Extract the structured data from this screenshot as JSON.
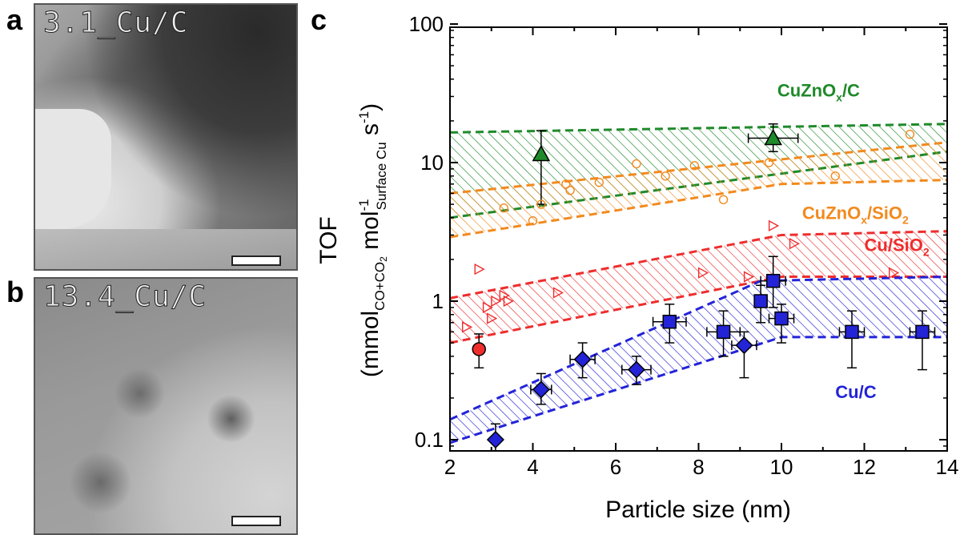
{
  "panels": {
    "a": {
      "letter": "a",
      "label": "3.1_Cu/C"
    },
    "b": {
      "letter": "b",
      "label": "13.4_Cu/C"
    },
    "c": {
      "letter": "c"
    }
  },
  "colors": {
    "green": "#1f8a2a",
    "orange": "#f28a1e",
    "red": "#ee2d2d",
    "blue": "#2323d8"
  },
  "chart_data": {
    "type": "scatter",
    "xlabel": "Particle size (nm)",
    "ylabel": "TOF",
    "ylabel_unit": "(mmol_{CO+CO2} mol^{-1}_{Surface Cu} s^{-1})",
    "xlim": [
      2,
      14
    ],
    "ylim": [
      0.05,
      100
    ],
    "yscale": "log",
    "xticks": [
      "2",
      "4",
      "6",
      "8",
      "10",
      "12",
      "14"
    ],
    "yticks": [
      "0.1",
      "1",
      "10",
      "100"
    ],
    "bands": [
      {
        "name": "CuZnOx/C",
        "color": "#1f8a2a",
        "upper": [
          [
            2,
            16.5
          ],
          [
            14,
            19
          ]
        ],
        "lower": [
          [
            2,
            4
          ],
          [
            14,
            12
          ]
        ]
      },
      {
        "name": "CuZnOx/SiO2",
        "color": "#f28a1e",
        "upper": [
          [
            2,
            6
          ],
          [
            14,
            14
          ]
        ],
        "lower": [
          [
            2,
            2.9
          ],
          [
            10,
            7
          ],
          [
            14,
            7.5
          ]
        ]
      },
      {
        "name": "Cu/SiO2",
        "color": "#ee2d2d",
        "upper": [
          [
            2,
            1.05
          ],
          [
            10,
            3
          ],
          [
            14,
            3.2
          ]
        ],
        "lower": [
          [
            2,
            0.5
          ],
          [
            10,
            1.5
          ],
          [
            14,
            1.5
          ]
        ]
      },
      {
        "name": "Cu/C",
        "color": "#2323d8",
        "upper": [
          [
            2,
            0.14
          ],
          [
            9.5,
            1.4
          ],
          [
            14,
            1.5
          ]
        ],
        "lower": [
          [
            2,
            0.095
          ],
          [
            10,
            0.55
          ],
          [
            14,
            0.55
          ]
        ]
      }
    ],
    "band_labels": [
      {
        "text": "CuZnO",
        "sub": "x",
        "after": "/C",
        "color": "#1f8a2a",
        "x": 9.9,
        "y": 30
      },
      {
        "text": "CuZnO",
        "sub": "x",
        "after": "/SiO",
        "sub2": "2",
        "color": "#f28a1e",
        "x": 10.5,
        "y": 3.9
      },
      {
        "text": "Cu/SiO",
        "sub": "",
        "after": "",
        "sub2": "2",
        "color": "#ee2d2d",
        "x": 12.0,
        "y": 2.3
      },
      {
        "text": "Cu/C",
        "sub": "",
        "after": "",
        "color": "#2323d8",
        "x": 11.3,
        "y": 0.2
      }
    ],
    "series": [
      {
        "name": "CuZnOx/C",
        "marker": "triangle",
        "color": "#1f8a2a",
        "filled": true,
        "points": [
          {
            "x": 4.2,
            "y": 11.5,
            "yerr": [
              5,
              17
            ],
            "xerr": 0
          },
          {
            "x": 9.8,
            "y": 15,
            "yerr": [
              12,
              19
            ],
            "xerr": 0.6
          }
        ]
      },
      {
        "name": "CuZnOx/SiO2",
        "marker": "circle",
        "color": "#f28a1e",
        "filled": false,
        "points": [
          {
            "x": 3.3,
            "y": 4.7
          },
          {
            "x": 4.0,
            "y": 3.8
          },
          {
            "x": 4.2,
            "y": 5.0
          },
          {
            "x": 4.8,
            "y": 7.0
          },
          {
            "x": 4.9,
            "y": 6.3
          },
          {
            "x": 5.6,
            "y": 7.2
          },
          {
            "x": 6.5,
            "y": 9.8
          },
          {
            "x": 7.2,
            "y": 8.0
          },
          {
            "x": 7.9,
            "y": 9.5
          },
          {
            "x": 8.6,
            "y": 5.4
          },
          {
            "x": 9.7,
            "y": 10.0
          },
          {
            "x": 11.3,
            "y": 8.0
          },
          {
            "x": 13.1,
            "y": 16.0
          }
        ]
      },
      {
        "name": "Cu/SiO2",
        "marker": "tri-right",
        "color": "#ee2d2d",
        "filled": false,
        "points": [
          {
            "x": 2.4,
            "y": 0.65
          },
          {
            "x": 2.7,
            "y": 1.7
          },
          {
            "x": 2.9,
            "y": 0.9
          },
          {
            "x": 3.0,
            "y": 0.75
          },
          {
            "x": 3.1,
            "y": 1.0
          },
          {
            "x": 3.3,
            "y": 1.1
          },
          {
            "x": 3.4,
            "y": 1.0
          },
          {
            "x": 4.6,
            "y": 1.15
          },
          {
            "x": 8.1,
            "y": 1.6
          },
          {
            "x": 9.2,
            "y": 1.5
          },
          {
            "x": 9.8,
            "y": 3.5
          },
          {
            "x": 10.3,
            "y": 2.6
          },
          {
            "x": 12.7,
            "y": 1.6
          }
        ]
      },
      {
        "name": "Cu/C (red)",
        "marker": "circle",
        "color": "#ee2d2d",
        "filled": true,
        "points": [
          {
            "x": 2.7,
            "y": 0.45,
            "yerr": [
              0.33,
              0.58
            ],
            "xerr": 0
          }
        ]
      },
      {
        "name": "Cu/C diamonds",
        "marker": "diamond",
        "color": "#2323d8",
        "filled": true,
        "points": [
          {
            "x": 3.1,
            "y": 0.1,
            "yerr": [
              0.075,
              0.13
            ],
            "xerr": 0
          },
          {
            "x": 4.2,
            "y": 0.23,
            "yerr": [
              0.18,
              0.3
            ],
            "xerr": 0.25
          },
          {
            "x": 5.2,
            "y": 0.38,
            "yerr": [
              0.28,
              0.5
            ],
            "xerr": 0.3
          },
          {
            "x": 6.5,
            "y": 0.32,
            "yerr": [
              0.25,
              0.4
            ],
            "xerr": 0.35
          },
          {
            "x": 9.1,
            "y": 0.48,
            "yerr": [
              0.28,
              0.6
            ],
            "xerr": 0.3
          }
        ]
      },
      {
        "name": "Cu/C squares",
        "marker": "square",
        "color": "#2323d8",
        "filled": true,
        "points": [
          {
            "x": 7.3,
            "y": 0.71,
            "yerr": [
              0.5,
              0.95
            ],
            "xerr": 0.4
          },
          {
            "x": 8.6,
            "y": 0.6,
            "yerr": [
              0.4,
              0.85
            ],
            "xerr": 0.4
          },
          {
            "x": 9.5,
            "y": 1.0,
            "yerr": [
              0.7,
              1.3
            ],
            "xerr": 0.15
          },
          {
            "x": 9.8,
            "y": 1.4,
            "yerr": [
              0.9,
              2.1
            ],
            "xerr": 0.3
          },
          {
            "x": 10.0,
            "y": 0.75,
            "yerr": [
              0.5,
              0.95
            ],
            "xerr": 0.3
          },
          {
            "x": 11.7,
            "y": 0.6,
            "yerr": [
              0.33,
              0.85
            ],
            "xerr": 0.3
          },
          {
            "x": 13.4,
            "y": 0.6,
            "yerr": [
              0.32,
              0.85
            ],
            "xerr": 0.3
          }
        ]
      }
    ]
  }
}
